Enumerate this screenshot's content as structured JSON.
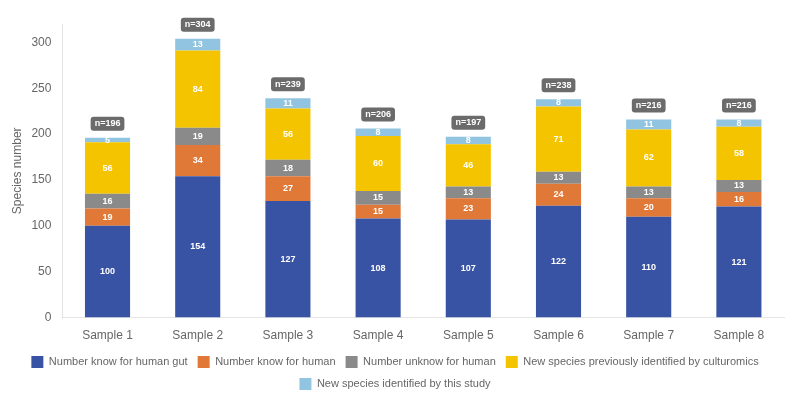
{
  "chart_data": {
    "type": "bar",
    "stacked": true,
    "categories": [
      "Sample 1",
      "Sample 2",
      "Sample 3",
      "Sample 4",
      "Sample 5",
      "Sample 6",
      "Sample 7",
      "Sample 8"
    ],
    "series": [
      {
        "name": "Number know for human gut",
        "color": "#3953A4",
        "values": [
          100,
          154,
          127,
          108,
          107,
          122,
          110,
          121
        ]
      },
      {
        "name": "Number know for human",
        "color": "#E07838",
        "values": [
          19,
          34,
          27,
          15,
          23,
          24,
          20,
          16
        ]
      },
      {
        "name": "Number unknow for human",
        "color": "#8A8A8A",
        "values": [
          16,
          19,
          18,
          15,
          13,
          13,
          13,
          13
        ]
      },
      {
        "name": "New species previously identified by culturomics",
        "color": "#F5C400",
        "values": [
          56,
          84,
          56,
          60,
          46,
          71,
          62,
          58
        ]
      },
      {
        "name": "New species identified by this study",
        "color": "#91C4E0",
        "values": [
          5,
          13,
          11,
          8,
          8,
          8,
          11,
          8
        ]
      }
    ],
    "ylabel": "Species number",
    "ylim": [
      0,
      320
    ],
    "yticks": [
      0,
      50,
      100,
      150,
      200,
      250,
      300
    ],
    "grid": false,
    "data_labels": true,
    "annotations": [
      "n=196",
      "n=304",
      "n=239",
      "n=206",
      "n=197",
      "n=238",
      "n=216",
      "n=216"
    ],
    "legend": "bottom"
  }
}
